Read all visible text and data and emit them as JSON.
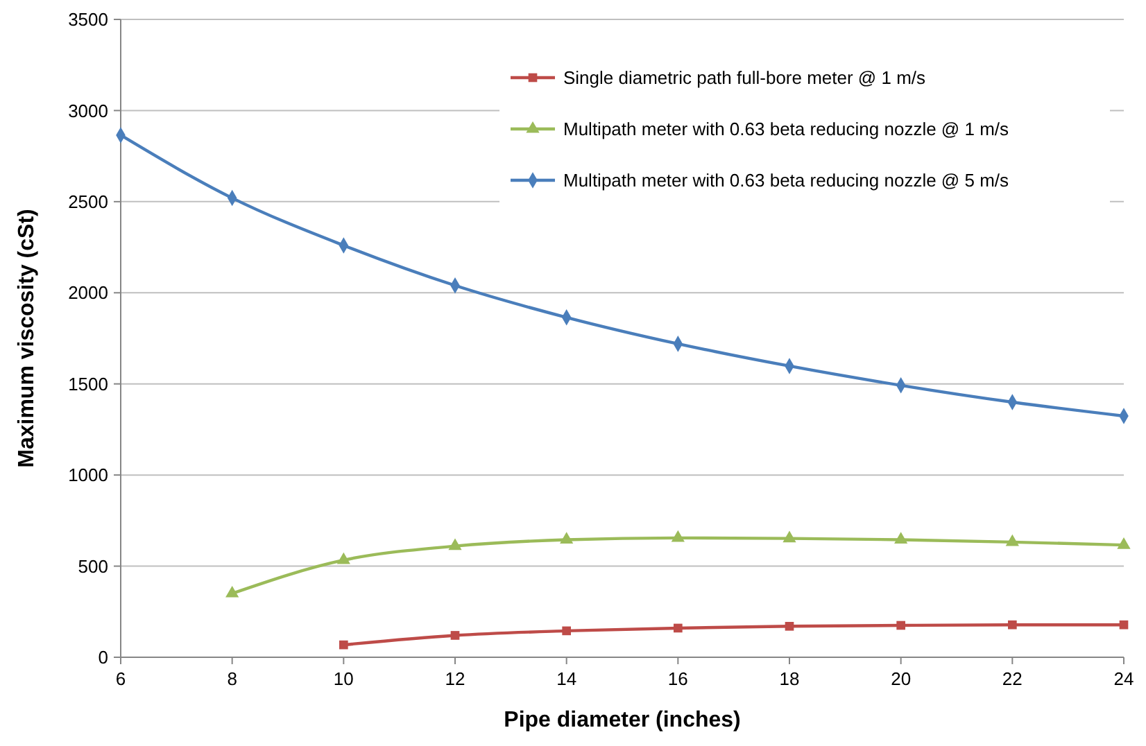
{
  "chart_data": {
    "type": "line",
    "xlabel": "Pipe diameter (inches)",
    "ylabel": "Maximum viscosity (cSt)",
    "x": [
      6,
      8,
      10,
      12,
      14,
      16,
      18,
      20,
      22,
      24
    ],
    "xlim": [
      6,
      24
    ],
    "xticks": [
      6,
      8,
      10,
      12,
      14,
      16,
      18,
      20,
      22,
      24
    ],
    "ylim": [
      0,
      3500
    ],
    "yticks": [
      0,
      500,
      1000,
      1500,
      2000,
      2500,
      3000,
      3500
    ],
    "grid": "y",
    "legend": "top right",
    "line_style": "solid",
    "series": [
      {
        "name": "Single diametric path full-bore meter @ 1 m/s",
        "color": "#be4b48",
        "marker": "square",
        "values": [
          null,
          null,
          68,
          120,
          145,
          160,
          170,
          175,
          178,
          178
        ]
      },
      {
        "name": "Multipath meter with 0.63 beta reducing nozzle @ 1 m/s",
        "color": "#9bbb59",
        "marker": "triangle",
        "values": [
          null,
          350,
          533,
          610,
          645,
          655,
          652,
          645,
          632,
          616
        ]
      },
      {
        "name": "Multipath meter with 0.63 beta reducing nozzle @ 5 m/s",
        "color": "#4a7ebb",
        "marker": "diamond",
        "values": [
          2865,
          2520,
          2260,
          2040,
          1865,
          1720,
          1598,
          1492,
          1400,
          1324
        ]
      }
    ]
  }
}
